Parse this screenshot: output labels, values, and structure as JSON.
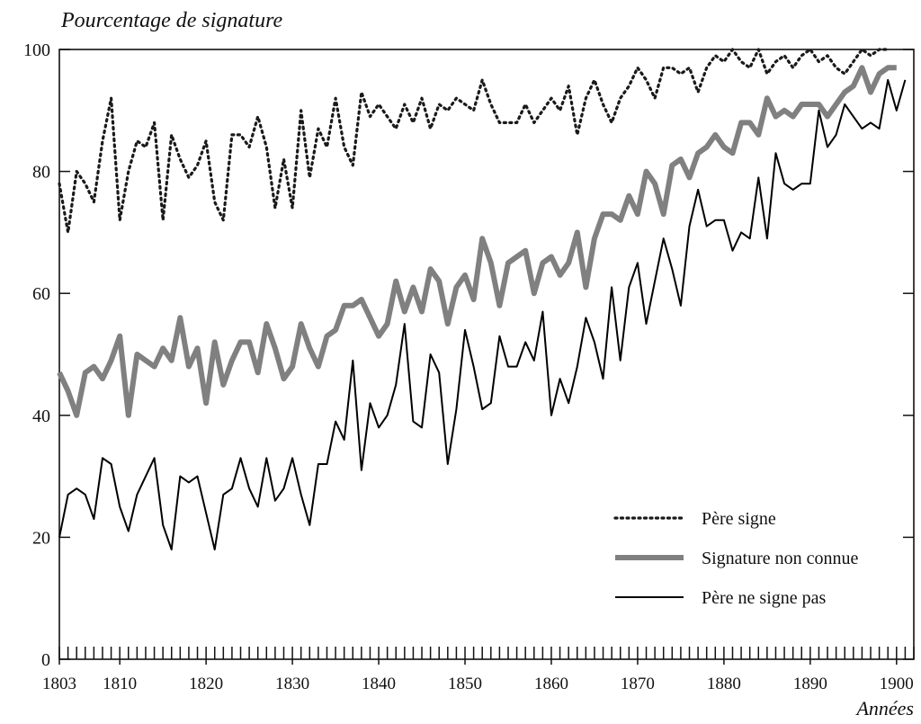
{
  "chart_data": {
    "type": "line",
    "title": "Pourcentage de signature",
    "xlabel": "Années",
    "ylabel": "",
    "xlim": [
      1803,
      1902
    ],
    "ylim": [
      0,
      100
    ],
    "x_ticks": [
      1803,
      1810,
      1820,
      1830,
      1840,
      1850,
      1860,
      1870,
      1880,
      1890,
      1900
    ],
    "y_ticks": [
      0,
      20,
      40,
      60,
      80,
      100
    ],
    "grid": false,
    "legend_position": "bottom-right",
    "x_start": 1803,
    "series": [
      {
        "name": "Père signe",
        "style": "dotted",
        "color": "#1a1a1a",
        "values": [
          78,
          70,
          80,
          78,
          75,
          85,
          92,
          72,
          80,
          85,
          84,
          88,
          72,
          86,
          82,
          79,
          81,
          85,
          75,
          72,
          86,
          86,
          84,
          89,
          84,
          74,
          82,
          74,
          90,
          79,
          87,
          84,
          92,
          84,
          81,
          93,
          89,
          91,
          89,
          87,
          91,
          88,
          92,
          87,
          91,
          90,
          92,
          91,
          90,
          95,
          91,
          88,
          88,
          88,
          91,
          88,
          90,
          92,
          90,
          94,
          86,
          92,
          95,
          91,
          88,
          92,
          94,
          97,
          95,
          92,
          97,
          97,
          96,
          97,
          93,
          97,
          99,
          98,
          100,
          98,
          97,
          100,
          96,
          98,
          99,
          97,
          99,
          100,
          98,
          99,
          97,
          96,
          98,
          100,
          99,
          100,
          100
        ]
      },
      {
        "name": "Signature non connue",
        "style": "thick",
        "color": "#808080",
        "values": [
          47,
          44,
          40,
          47,
          48,
          46,
          49,
          53,
          40,
          50,
          49,
          48,
          51,
          49,
          56,
          48,
          51,
          42,
          52,
          45,
          49,
          52,
          52,
          47,
          55,
          51,
          46,
          48,
          55,
          51,
          48,
          53,
          54,
          58,
          58,
          59,
          56,
          53,
          55,
          62,
          57,
          61,
          57,
          64,
          62,
          55,
          61,
          63,
          59,
          69,
          65,
          58,
          65,
          66,
          67,
          60,
          65,
          66,
          63,
          65,
          70,
          61,
          69,
          73,
          73,
          72,
          76,
          73,
          80,
          78,
          73,
          81,
          82,
          79,
          83,
          84,
          86,
          84,
          83,
          88,
          88,
          86,
          92,
          89,
          90,
          89,
          91,
          91,
          91,
          89,
          91,
          93,
          94,
          97,
          93,
          96,
          97,
          97
        ]
      },
      {
        "name": "Père ne signe pas",
        "style": "solid",
        "color": "#000000",
        "values": [
          20,
          27,
          28,
          27,
          23,
          33,
          32,
          25,
          21,
          27,
          30,
          33,
          22,
          18,
          30,
          29,
          30,
          24,
          18,
          27,
          28,
          33,
          28,
          25,
          33,
          26,
          28,
          33,
          27,
          22,
          32,
          32,
          39,
          36,
          49,
          31,
          42,
          38,
          40,
          45,
          55,
          39,
          38,
          50,
          47,
          32,
          41,
          54,
          48,
          41,
          42,
          53,
          48,
          48,
          52,
          49,
          57,
          40,
          46,
          42,
          48,
          56,
          52,
          46,
          61,
          49,
          61,
          65,
          55,
          62,
          69,
          64,
          58,
          71,
          77,
          71,
          72,
          72,
          67,
          70,
          69,
          79,
          69,
          83,
          78,
          77,
          78,
          78,
          90,
          84,
          86,
          91,
          89,
          87,
          88,
          87,
          95,
          90,
          95
        ]
      }
    ]
  }
}
